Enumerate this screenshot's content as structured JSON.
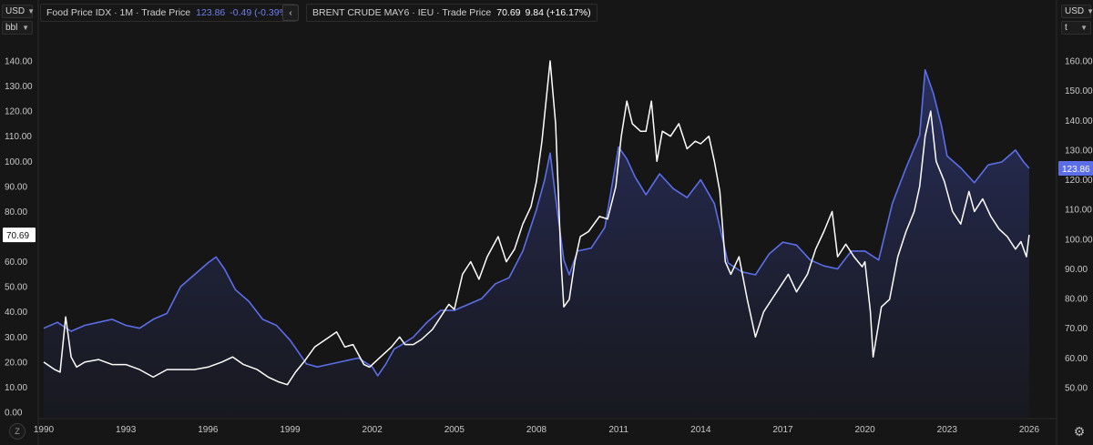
{
  "header": {
    "left_unit": {
      "currency": "USD",
      "unit": "bbl"
    },
    "right_unit": {
      "currency": "USD",
      "unit": "t"
    },
    "series1_legend": {
      "name": "Food Price IDX · 1M · Trade Price",
      "value": "123.86",
      "change": "-0.49 (-0.39%)"
    },
    "series2_legend": {
      "collapse_icon": "chevron-left-icon",
      "name": "BRENT CRUDE MAY6 · IEU · Trade Price",
      "value": "70.69",
      "change": "9.84 (+16.17%)"
    }
  },
  "footer": {
    "z_label": "Z",
    "settings_icon": "gear-icon"
  },
  "colors": {
    "background": "#161616",
    "food": "#5b6ee8",
    "brent": "#ffffff",
    "grid": "#262626"
  },
  "chart_data": {
    "type": "line",
    "grid": false,
    "x_ticks": [
      "1990",
      "1993",
      "1996",
      "1999",
      "2002",
      "2005",
      "2008",
      "2011",
      "2014",
      "2017",
      "2020",
      "2023",
      "2026"
    ],
    "left_axis": {
      "ylim": [
        0,
        140
      ],
      "ticks": [
        "0.00",
        "10.00",
        "20.00",
        "30.00",
        "40.00",
        "50.00",
        "60.00",
        "70.00",
        "80.00",
        "90.00",
        "100.00",
        "110.00",
        "120.00",
        "130.00",
        "140.00"
      ]
    },
    "right_axis": {
      "ylim": [
        50,
        160
      ],
      "ticks": [
        "50.00",
        "60.00",
        "70.00",
        "80.00",
        "90.00",
        "100.00",
        "110.00",
        "120.00",
        "130.00",
        "140.00",
        "150.00",
        "160.00"
      ]
    },
    "last_value_labels": {
      "left": "70.69",
      "right": "123.86"
    },
    "series": [
      {
        "name": "BRENT CRUDE MAY6",
        "axis": "left",
        "style": "line",
        "x": [
          1990.0,
          1990.4,
          1990.6,
          1990.8,
          1991.0,
          1991.2,
          1991.5,
          1992.0,
          1992.5,
          1993.0,
          1993.5,
          1994.0,
          1994.5,
          1995.0,
          1995.5,
          1996.0,
          1996.5,
          1996.9,
          1997.3,
          1997.8,
          1998.2,
          1998.6,
          1998.9,
          1999.2,
          1999.5,
          1999.9,
          2000.3,
          2000.7,
          2001.0,
          2001.3,
          2001.7,
          2001.9,
          2002.3,
          2002.7,
          2003.0,
          2003.2,
          2003.5,
          2003.8,
          2004.2,
          2004.5,
          2004.8,
          2005.0,
          2005.3,
          2005.6,
          2005.9,
          2006.2,
          2006.6,
          2006.9,
          2007.2,
          2007.5,
          2007.8,
          2008.0,
          2008.2,
          2008.5,
          2008.7,
          2008.9,
          2009.0,
          2009.2,
          2009.4,
          2009.6,
          2009.9,
          2010.3,
          2010.6,
          2010.9,
          2011.1,
          2011.3,
          2011.5,
          2011.8,
          2012.0,
          2012.2,
          2012.4,
          2012.6,
          2012.9,
          2013.2,
          2013.5,
          2013.8,
          2014.0,
          2014.3,
          2014.5,
          2014.7,
          2014.9,
          2015.1,
          2015.4,
          2015.7,
          2016.0,
          2016.3,
          2016.6,
          2016.9,
          2017.2,
          2017.5,
          2017.9,
          2018.2,
          2018.5,
          2018.8,
          2019.0,
          2019.3,
          2019.6,
          2019.9,
          2020.0,
          2020.2,
          2020.3,
          2020.6,
          2020.9,
          2021.2,
          2021.5,
          2021.8,
          2022.0,
          2022.2,
          2022.4,
          2022.6,
          2022.9,
          2023.2,
          2023.5,
          2023.8,
          2024.0,
          2024.3,
          2024.6,
          2024.9,
          2025.2,
          2025.5,
          2025.7,
          2025.9,
          2026.0
        ],
        "values": [
          20,
          17,
          16,
          38,
          22,
          18,
          20,
          21,
          19,
          19,
          17,
          14,
          17,
          17,
          17,
          18,
          20,
          22,
          19,
          17,
          14,
          12,
          11,
          16,
          20,
          26,
          29,
          32,
          26,
          27,
          19,
          18,
          22,
          26,
          30,
          27,
          27,
          29,
          33,
          38,
          43,
          41,
          55,
          60,
          53,
          62,
          70,
          60,
          65,
          75,
          82,
          92,
          108,
          140,
          115,
          60,
          42,
          45,
          60,
          70,
          72,
          78,
          77,
          90,
          110,
          124,
          115,
          112,
          112,
          124,
          100,
          112,
          110,
          115,
          105,
          108,
          107,
          110,
          100,
          88,
          60,
          55,
          62,
          45,
          30,
          40,
          45,
          50,
          55,
          48,
          55,
          65,
          72,
          80,
          62,
          67,
          62,
          58,
          60,
          40,
          22,
          42,
          45,
          62,
          72,
          80,
          90,
          110,
          120,
          100,
          92,
          80,
          75,
          88,
          80,
          85,
          78,
          73,
          70,
          65,
          68,
          62,
          70.69
        ]
      },
      {
        "name": "Food Price IDX",
        "axis": "right",
        "style": "area",
        "x": [
          1990.0,
          1990.5,
          1991.0,
          1991.5,
          1992.0,
          1992.5,
          1993.0,
          1993.5,
          1994.0,
          1994.5,
          1995.0,
          1995.5,
          1996.0,
          1996.3,
          1996.6,
          1997.0,
          1997.5,
          1998.0,
          1998.5,
          1999.0,
          1999.3,
          1999.6,
          2000.0,
          2000.5,
          2001.0,
          2001.5,
          2002.0,
          2002.2,
          2002.5,
          2002.8,
          2003.0,
          2003.5,
          2004.0,
          2004.5,
          2005.0,
          2005.5,
          2006.0,
          2006.5,
          2007.0,
          2007.5,
          2008.0,
          2008.3,
          2008.5,
          2008.7,
          2009.0,
          2009.2,
          2009.5,
          2010.0,
          2010.5,
          2011.0,
          2011.3,
          2011.6,
          2012.0,
          2012.5,
          2013.0,
          2013.5,
          2014.0,
          2014.5,
          2015.0,
          2015.5,
          2016.0,
          2016.5,
          2017.0,
          2017.5,
          2018.0,
          2018.5,
          2019.0,
          2019.5,
          2020.0,
          2020.5,
          2021.0,
          2021.5,
          2022.0,
          2022.2,
          2022.5,
          2022.8,
          2023.0,
          2023.5,
          2024.0,
          2024.5,
          2025.0,
          2025.5,
          2025.8,
          2026.0
        ],
        "values": [
          70,
          72,
          69,
          71,
          72,
          73,
          71,
          70,
          73,
          75,
          84,
          88,
          92,
          94,
          90,
          83,
          79,
          73,
          71,
          66,
          62,
          58,
          57,
          58,
          59,
          60,
          57,
          54,
          58,
          63,
          64,
          67,
          72,
          76,
          76,
          78,
          80,
          85,
          87,
          96,
          110,
          120,
          129,
          114,
          93,
          88,
          96,
          97,
          104,
          131,
          127,
          121,
          115,
          122,
          117,
          114,
          120,
          112,
          92,
          89,
          88,
          95,
          99,
          98,
          93,
          91,
          90,
          96,
          96,
          93,
          112,
          124,
          135,
          157,
          149,
          138,
          128,
          124,
          119,
          125,
          126,
          130,
          126,
          123.86
        ]
      }
    ]
  }
}
